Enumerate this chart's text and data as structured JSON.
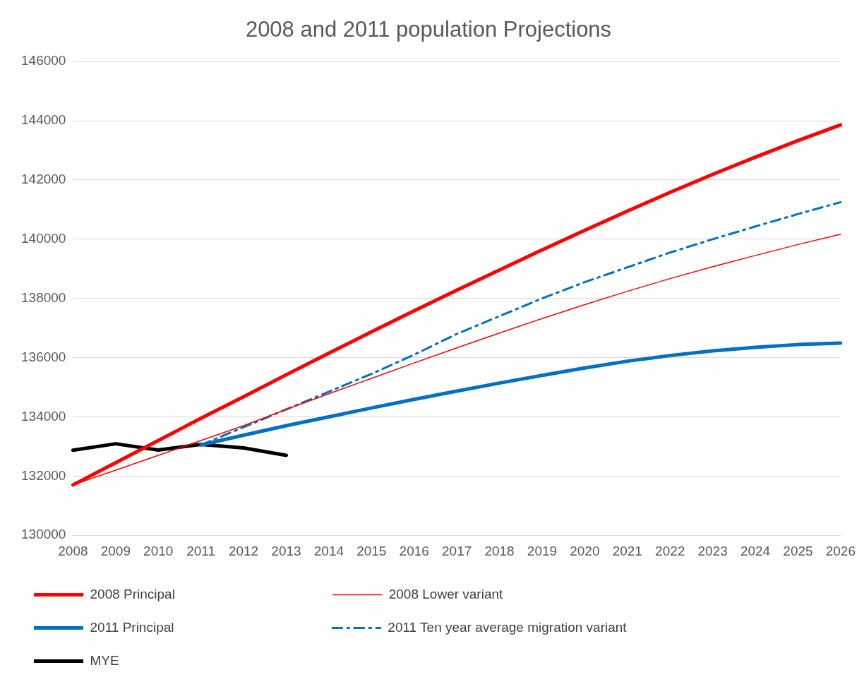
{
  "chart_data": {
    "type": "line",
    "title": "2008 and 2011 population Projections",
    "categories": [
      "2008",
      "2009",
      "2010",
      "2011",
      "2012",
      "2013",
      "2014",
      "2015",
      "2016",
      "2017",
      "2018",
      "2019",
      "2020",
      "2021",
      "2022",
      "2023",
      "2024",
      "2025",
      "2026"
    ],
    "series": [
      {
        "name": "2008 Principal",
        "color": "#ff0000",
        "values": [
          131700,
          132450,
          133200,
          133950,
          134680,
          135420,
          136150,
          136870,
          137580,
          138280,
          138960,
          139640,
          140300,
          140950,
          141580,
          142190,
          142770,
          143330,
          143860
        ]
      },
      {
        "name": "2008 Lower variant",
        "color": "#ff0000",
        "values": [
          131700,
          132200,
          132700,
          133200,
          133700,
          134250,
          134780,
          135300,
          135820,
          136330,
          136830,
          137320,
          137790,
          138240,
          138670,
          139070,
          139450,
          139820,
          140170
        ]
      },
      {
        "name": "2011 Principal",
        "color": "#0070c0",
        "values": [
          null,
          null,
          null,
          133050,
          133380,
          133700,
          134000,
          134300,
          134590,
          134870,
          135140,
          135400,
          135650,
          135880,
          136070,
          136230,
          136350,
          136440,
          136490
        ]
      },
      {
        "name": "2011 Ten year average migration variant",
        "color": "#0070c0",
        "line_style": "dashed",
        "values": [
          null,
          null,
          null,
          133050,
          133650,
          134250,
          134850,
          135450,
          136100,
          136800,
          137400,
          138000,
          138550,
          139050,
          139550,
          140000,
          140430,
          140850,
          141250
        ]
      },
      {
        "name": "MYE",
        "color": "#000000",
        "values": [
          132870,
          133090,
          132880,
          133070,
          132950,
          132700,
          null,
          null,
          null,
          null,
          null,
          null,
          null,
          null,
          null,
          null,
          null,
          null,
          null
        ]
      }
    ],
    "ylim": [
      130000,
      146000
    ],
    "yticks": [
      130000,
      132000,
      134000,
      136000,
      138000,
      140000,
      142000,
      144000,
      146000
    ],
    "grid": "y",
    "legend": "bottom",
    "marker": "none",
    "line_style": "solid"
  }
}
